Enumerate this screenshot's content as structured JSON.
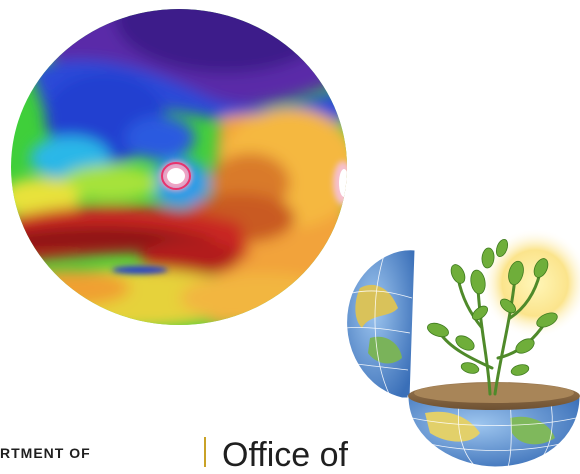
{
  "images": {
    "heatmap_globe": "climate-heatmap-icon",
    "earth_plant": "earth-plant-icon"
  },
  "footer": {
    "department_text": "RTMENT OF",
    "office_text": "Office of"
  },
  "colors": {
    "divider": "#c9a227",
    "text": "#1f1f1f"
  }
}
